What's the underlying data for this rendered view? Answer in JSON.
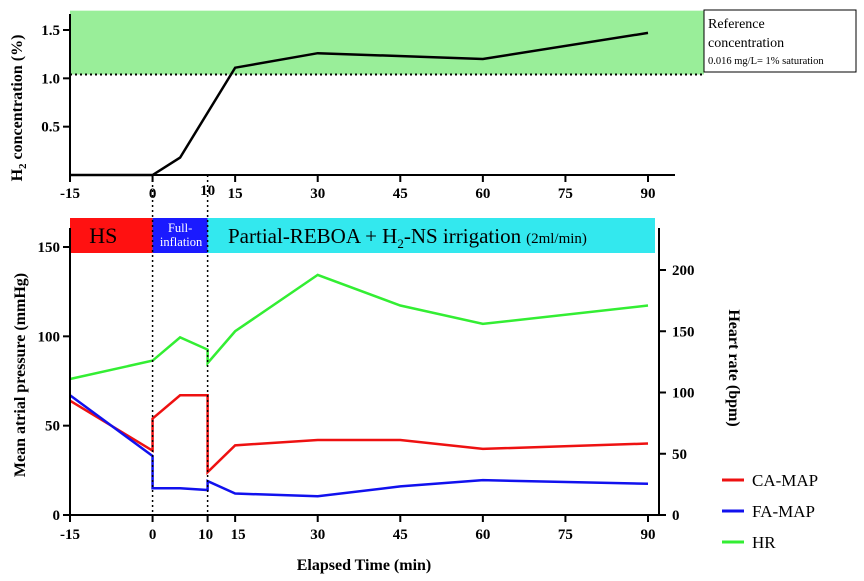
{
  "chart_data": [
    {
      "type": "line",
      "ylabel": "H2 concentration (%)",
      "ylabel_main": "H",
      "ylabel_sub": "2",
      "ylabel_rest": " concentration (%)",
      "xlim": [
        -15,
        90
      ],
      "ylim": [
        0,
        1.7
      ],
      "xticks": [
        "-15",
        "0",
        "15",
        "30",
        "45",
        "60",
        "75",
        "90"
      ],
      "xtick_values": [
        -15,
        0,
        15,
        30,
        45,
        60,
        75,
        90
      ],
      "xtick_extra": "10",
      "yticks": [
        "0.5",
        "1.0",
        "1.5"
      ],
      "ytick_values": [
        0.5,
        1.0,
        1.5
      ],
      "series": [
        {
          "name": "H2",
          "color": "#000000",
          "x": [
            -15,
            0,
            5,
            15,
            30,
            60,
            90
          ],
          "y": [
            0.0,
            0.0,
            0.18,
            1.11,
            1.26,
            1.2,
            1.47
          ]
        }
      ],
      "reference_band": {
        "y_from": 1.04,
        "y_to": 1.7,
        "color": "#99ee99",
        "label_line1": "Reference",
        "label_line2": "concentration",
        "label_line3": "0.016 mg/L= 1% saturation"
      }
    },
    {
      "type": "line",
      "xlabel": "Elapsed Time (min)",
      "ylabel": "Mean atrial pressure (mmHg)",
      "y2label": "Heart rate (bpm)",
      "xlim": [
        -15,
        90
      ],
      "ylim": [
        0,
        160
      ],
      "y2lim": [
        0,
        227
      ],
      "xticks": [
        "-15",
        "0",
        "10",
        "15",
        "30",
        "45",
        "60",
        "75",
        "90"
      ],
      "xtick_values": [
        -15,
        0,
        10,
        15,
        30,
        45,
        60,
        75,
        90
      ],
      "yticks": [
        "0",
        "50",
        "100",
        "150"
      ],
      "ytick_values": [
        0,
        50,
        100,
        150
      ],
      "y2ticks": [
        "0",
        "50",
        "100",
        "150",
        "200"
      ],
      "y2tick_values": [
        0,
        50,
        100,
        150,
        200
      ],
      "phases": [
        {
          "label": "HS",
          "from": -15,
          "to": 0,
          "color": "#ff1111"
        },
        {
          "label_line1": "Full-",
          "label_line2": "inflation",
          "from": 0,
          "to": 10,
          "color": "#1a1aff"
        },
        {
          "label_main": "Partial-REBOA + H",
          "label_sub": "2",
          "label_rest": "-NS irrigation",
          "label_small": "(2ml/min)",
          "from": 10,
          "to": 90,
          "color": "#33e8ee"
        }
      ],
      "series": [
        {
          "name": "CA-MAP",
          "color": "#ee1111",
          "axis": "left",
          "x": [
            -15,
            0,
            0,
            5,
            10,
            10,
            15,
            30,
            45,
            60,
            90
          ],
          "y": [
            64,
            36,
            54,
            67,
            67,
            24,
            39,
            42,
            42,
            37,
            40
          ]
        },
        {
          "name": "FA-MAP",
          "color": "#1111ee",
          "axis": "left",
          "x": [
            -15,
            0,
            0,
            5,
            10,
            10,
            15,
            30,
            45,
            60,
            90
          ],
          "y": [
            67,
            33,
            15,
            15,
            14,
            19,
            12,
            10.5,
            16,
            19.5,
            17.5
          ]
        },
        {
          "name": "HR",
          "color": "#33ee33",
          "axis": "right",
          "x": [
            -15,
            0,
            5,
            10,
            10,
            15,
            30,
            45,
            60,
            90
          ],
          "y": [
            111,
            126,
            145,
            135,
            124,
            150,
            196,
            171,
            156,
            171
          ]
        }
      ]
    }
  ]
}
